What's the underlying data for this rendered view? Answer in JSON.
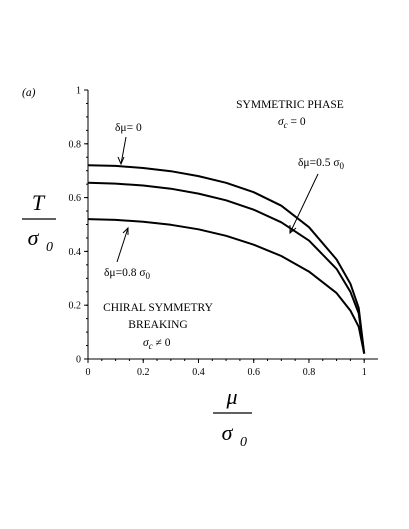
{
  "chart_data": {
    "type": "line",
    "panel_label": "(a)",
    "xlabel": {
      "num": "μ",
      "den": "σ",
      "den_sub": "0"
    },
    "ylabel": {
      "num": "T",
      "den": "σ",
      "den_sub": "0"
    },
    "xlim": [
      0,
      1.05
    ],
    "ylim": [
      0,
      1
    ],
    "xticks": [
      0,
      0.2,
      0.4,
      0.6,
      0.8,
      1
    ],
    "yticks": [
      0,
      0.2,
      0.4,
      0.6,
      0.8,
      1
    ],
    "xtick_labels": [
      "0",
      "0.2",
      "0.4",
      "0.6",
      "0.8",
      "1"
    ],
    "ytick_labels": [
      "0",
      "0.2",
      "0.4",
      "0.6",
      "0.8",
      "1"
    ],
    "grid": false,
    "series": [
      {
        "name": "δμ= 0",
        "x": [
          0,
          0.1,
          0.2,
          0.3,
          0.4,
          0.5,
          0.6,
          0.7,
          0.8,
          0.9,
          0.95,
          0.98,
          1.0
        ],
        "y": [
          0.72,
          0.718,
          0.71,
          0.698,
          0.68,
          0.655,
          0.62,
          0.57,
          0.49,
          0.37,
          0.28,
          0.19,
          0.02
        ]
      },
      {
        "name": "δμ=0.5 σ0",
        "x": [
          0,
          0.1,
          0.2,
          0.3,
          0.4,
          0.5,
          0.6,
          0.7,
          0.8,
          0.9,
          0.95,
          0.98,
          1.0
        ],
        "y": [
          0.655,
          0.652,
          0.645,
          0.633,
          0.615,
          0.59,
          0.555,
          0.508,
          0.44,
          0.335,
          0.25,
          0.17,
          0.02
        ]
      },
      {
        "name": "δμ=0.8 σ0",
        "x": [
          0,
          0.1,
          0.2,
          0.3,
          0.4,
          0.5,
          0.6,
          0.7,
          0.8,
          0.9,
          0.95,
          0.98,
          1.0
        ],
        "y": [
          0.52,
          0.517,
          0.51,
          0.499,
          0.482,
          0.458,
          0.425,
          0.383,
          0.325,
          0.245,
          0.18,
          0.12,
          0.02
        ]
      }
    ],
    "annotations": {
      "sym_title": "SYMMETRIC PHASE",
      "sym_sigma": "σ",
      "sym_sub": "c",
      "sym_eq": " = 0",
      "csb_line1": "CHIRAL SYMMETRY",
      "csb_line2": "BREAKING",
      "csb_sigma": "σ",
      "csb_sub": "c",
      "csb_eq": " ≠ 0",
      "lab_a": "δμ= 0",
      "lab_b_main": "δμ=0.5 σ",
      "lab_b_sub": "0",
      "lab_c_main": "δμ=0.8 σ",
      "lab_c_sub": "0"
    }
  }
}
